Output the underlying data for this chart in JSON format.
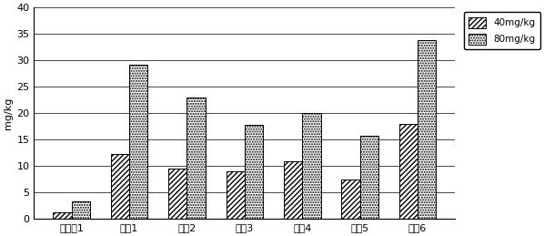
{
  "categories": [
    "实施例1",
    "对比1",
    "对比2",
    "对比3",
    "对比4",
    "对比5",
    "对比6"
  ],
  "values_40": [
    1.2,
    12.3,
    9.5,
    9.0,
    10.8,
    7.5,
    18.0
  ],
  "values_80": [
    3.2,
    29.2,
    23.0,
    17.7,
    20.0,
    15.7,
    33.8
  ],
  "ylabel": "mg/kg",
  "ylim": [
    0,
    40
  ],
  "yticks": [
    0,
    5,
    10,
    15,
    20,
    25,
    30,
    35,
    40
  ],
  "legend_40": "40mg/kg",
  "legend_80": "80mg/kg",
  "bar_width": 0.32,
  "background": "#ffffff"
}
